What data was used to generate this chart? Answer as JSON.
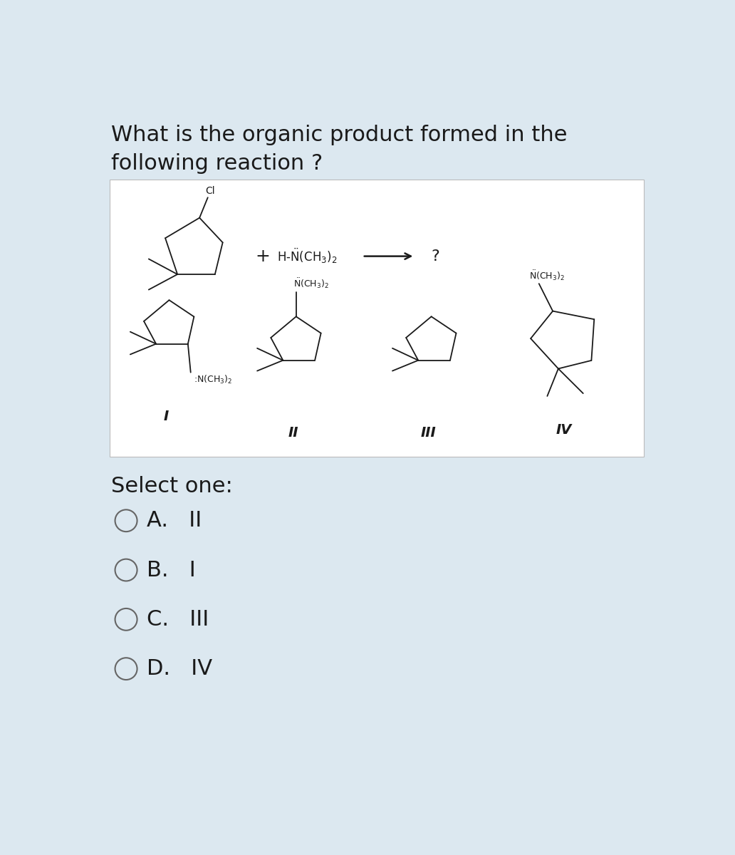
{
  "title_line1": "What is the organic product formed in the",
  "title_line2": "following reaction ?",
  "bg_outer": "#dce8f0",
  "bg_inner": "#ffffff",
  "text_color": "#1a1a1a",
  "select_one": "Select one:",
  "options": [
    "A.   II",
    "B.   I",
    "C.   III",
    "D.   IV"
  ],
  "title_fontsize": 22,
  "option_fontsize": 22,
  "select_fontsize": 22,
  "lw": 1.3
}
